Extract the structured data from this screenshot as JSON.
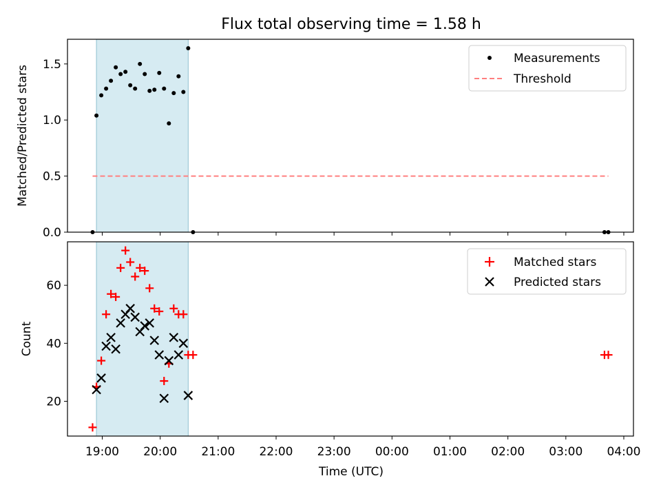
{
  "chart_data": [
    {
      "type": "scatter",
      "title": "Flux total observing time = 1.58 h",
      "ylabel": "Matched/Predicted stars",
      "xlabel": "",
      "xlim": [
        "18:24",
        "04:10"
      ],
      "ylim": [
        0.0,
        1.72
      ],
      "yticks": [
        0.0,
        0.5,
        1.0,
        1.5
      ],
      "ytick_labels": [
        "0.0",
        "0.5",
        "1.0",
        "1.5"
      ],
      "shaded_interval": [
        "18:54",
        "20:29"
      ],
      "shaded_color": "#add8e6",
      "legend_position": "upper right",
      "series": [
        {
          "name": "Measurements",
          "kind": "dot",
          "color": "#000000",
          "x": [
            "18:50",
            "18:54",
            "18:59",
            "19:04",
            "19:09",
            "19:14",
            "19:19",
            "19:24",
            "19:29",
            "19:34",
            "19:39",
            "19:44",
            "19:49",
            "19:54",
            "19:59",
            "20:04",
            "20:09",
            "20:14",
            "20:19",
            "20:24",
            "20:34",
            "03:40",
            "03:44"
          ],
          "y": [
            0.0,
            1.04,
            1.22,
            1.28,
            1.35,
            1.47,
            1.41,
            1.43,
            1.31,
            1.28,
            1.5,
            1.41,
            1.26,
            1.27,
            1.42,
            1.28,
            0.97,
            1.24,
            1.39,
            1.25,
            0.0,
            0.0,
            0.0
          ]
        }
      ],
      "threshold": {
        "name": "Threshold",
        "value": 0.5,
        "x_range": [
          "18:50",
          "03:44"
        ],
        "color": "#ff7f7f",
        "style": "dashed"
      },
      "extra_points": [
        {
          "x": "20:29",
          "y": 1.64
        }
      ]
    },
    {
      "type": "scatter",
      "title": "",
      "ylabel": "Count",
      "xlabel": "Time (UTC)",
      "xlim": [
        "18:24",
        "04:10"
      ],
      "ylim": [
        8,
        75
      ],
      "yticks": [
        20,
        40,
        60
      ],
      "ytick_labels": [
        "20",
        "40",
        "60"
      ],
      "xticks": [
        "19:00",
        "20:00",
        "21:00",
        "22:00",
        "23:00",
        "00:00",
        "01:00",
        "02:00",
        "03:00",
        "04:00"
      ],
      "shaded_interval": [
        "18:54",
        "20:29"
      ],
      "shaded_color": "#add8e6",
      "legend_position": "upper right",
      "series": [
        {
          "name": "Matched stars",
          "kind": "plus",
          "color": "#ff0000",
          "x": [
            "18:50",
            "18:54",
            "18:59",
            "19:04",
            "19:09",
            "19:14",
            "19:19",
            "19:24",
            "19:29",
            "19:34",
            "19:39",
            "19:44",
            "19:49",
            "19:54",
            "19:59",
            "20:04",
            "20:09",
            "20:14",
            "20:19",
            "20:24",
            "20:29",
            "20:34",
            "03:40",
            "03:44"
          ],
          "y": [
            11,
            25,
            34,
            50,
            57,
            56,
            66,
            72,
            68,
            63,
            66,
            65,
            59,
            52,
            51,
            27,
            33,
            52,
            50,
            50,
            36,
            36,
            36,
            36
          ]
        },
        {
          "name": "Predicted stars",
          "kind": "cross",
          "color": "#000000",
          "x": [
            "18:54",
            "18:59",
            "19:04",
            "19:09",
            "19:14",
            "19:19",
            "19:24",
            "19:29",
            "19:34",
            "19:39",
            "19:44",
            "19:49",
            "19:54",
            "19:59",
            "20:04",
            "20:09",
            "20:14",
            "20:19",
            "20:24",
            "20:29"
          ],
          "y": [
            24,
            28,
            39,
            42,
            38,
            47,
            50,
            52,
            49,
            44,
            46,
            47,
            41,
            36,
            21,
            34,
            42,
            36,
            40,
            22
          ]
        }
      ]
    }
  ]
}
